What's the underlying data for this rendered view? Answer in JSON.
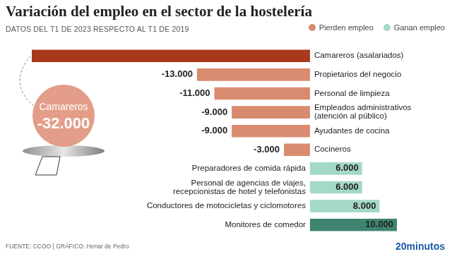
{
  "chart_data": {
    "type": "bar",
    "title": "Variación del empleo en el sector de la hostelería",
    "subtitle": "DATOS DEL T1 DE 2023 RESPECTO AL T1 DE 2019",
    "source": "FUENTE: CCOO | GRÁFICO: Henar de Pedro",
    "brand": "20minutos",
    "orientation": "horizontal",
    "categories": [
      "Camareros (asalariados)",
      "Propietarios del negocio",
      "Personal de limpieza",
      [
        "Empleados administrativos",
        "(atención al público)"
      ],
      "Ayudantes de cocina",
      "Cocineros",
      "Preparadores de comida rápida",
      [
        "Personal de agencias de viajes,",
        "recepcionistas de hotel y telefonistas"
      ],
      "Conductores de motocicletas y ciclomotores",
      "Monitores de comedor"
    ],
    "series": [
      {
        "name": "Pierden empleo",
        "color": "#d98b6f",
        "colors": [
          "#a8391a",
          "#d98b6f",
          "#d98b6f",
          "#d98b6f",
          "#d98b6f",
          "#d98b6f",
          "#d98b6f",
          "#d98b6f",
          "#d98b6f",
          "#d98b6f"
        ],
        "values": [
          -32000,
          -13000,
          -11000,
          -9000,
          -9000,
          -3000,
          null,
          null,
          null,
          null
        ],
        "value_labels": [
          "-32.000",
          "-13.000",
          "-11.000",
          "-9.000",
          "-9.000",
          "-3.000",
          null,
          null,
          null,
          null
        ]
      },
      {
        "name": "Ganan empleo",
        "color": "#a4d8c8",
        "colors": [
          "#a4d8c8",
          "#a4d8c8",
          "#a4d8c8",
          "#a4d8c8",
          "#a4d8c8",
          "#a4d8c8",
          "#a4d8c8",
          "#a4d8c8",
          "#a4d8c8",
          "#3e8470"
        ],
        "values": [
          null,
          null,
          null,
          null,
          null,
          null,
          6000,
          6000,
          8000,
          10000
        ],
        "value_labels": [
          null,
          null,
          null,
          null,
          null,
          null,
          "6.000",
          "6.000",
          "8.000",
          "10.000"
        ]
      }
    ],
    "annotations": [
      {
        "text": "Camareros"
      }
    ],
    "xlim": [
      -32000,
      10000
    ],
    "grid": false,
    "legend": "top-right",
    "data_labels": true,
    "tick_labels": "y"
  }
}
